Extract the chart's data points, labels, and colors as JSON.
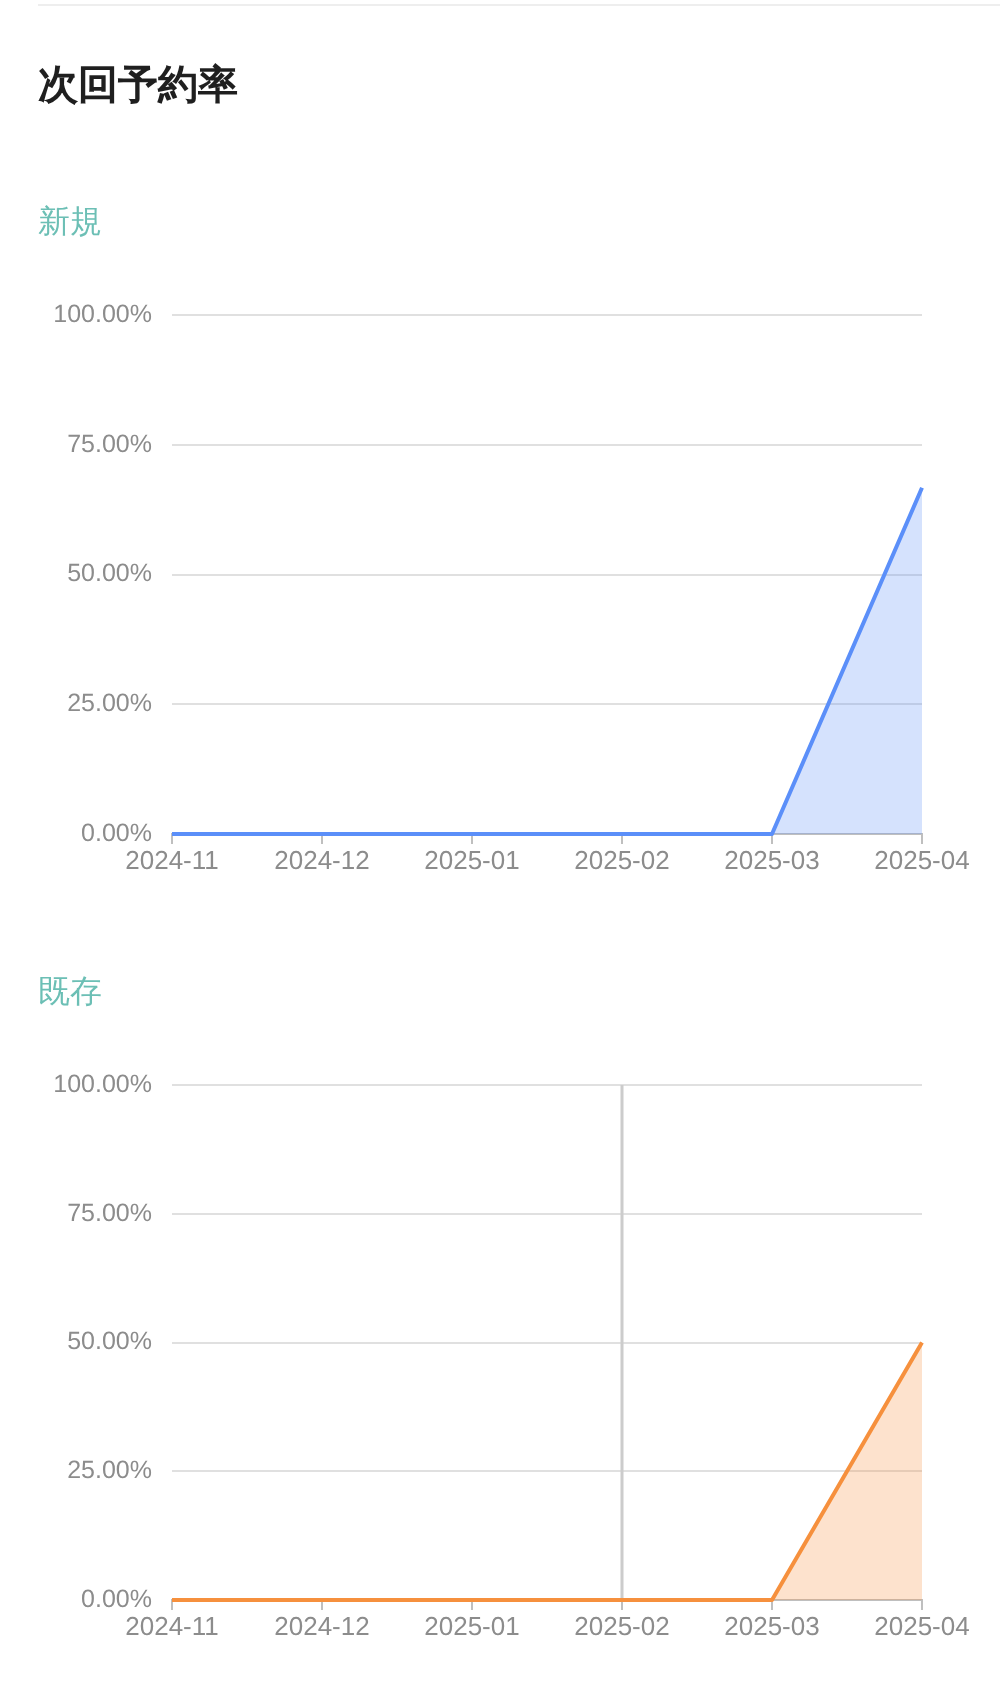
{
  "chart_data": [
    {
      "type": "area",
      "title": "次回予約率",
      "subtitle": "新規",
      "categories": [
        "2024-11",
        "2024-12",
        "2025-01",
        "2025-02",
        "2025-03",
        "2025-04"
      ],
      "series": [
        {
          "color": "#5b8ff9",
          "values": [
            0,
            0,
            0,
            0,
            0,
            66.7
          ]
        }
      ],
      "ylim": [
        0,
        100
      ],
      "yticks": [
        {
          "value": 0,
          "label": "0.00%"
        },
        {
          "value": 25,
          "label": "25.00%"
        },
        {
          "value": 50,
          "label": "50.00%"
        },
        {
          "value": 75,
          "label": "75.00%"
        },
        {
          "value": 100,
          "label": "100.00%"
        }
      ],
      "grid": "y"
    },
    {
      "type": "area",
      "subtitle": "既存",
      "categories": [
        "2024-11",
        "2024-12",
        "2025-01",
        "2025-02",
        "2025-03",
        "2025-04"
      ],
      "series": [
        {
          "color": "#f6903d",
          "values": [
            0,
            0,
            0,
            0,
            0,
            50
          ]
        }
      ],
      "ylim": [
        0,
        100
      ],
      "yticks": [
        {
          "value": 0,
          "label": "0.00%"
        },
        {
          "value": 25,
          "label": "25.00%"
        },
        {
          "value": 50,
          "label": "50.00%"
        },
        {
          "value": 75,
          "label": "75.00%"
        },
        {
          "value": 100,
          "label": "100.00%"
        }
      ],
      "grid": "y",
      "ref_lines": [
        {
          "axis": "x",
          "value": "2025-02",
          "color": "#cccccc"
        }
      ]
    }
  ]
}
